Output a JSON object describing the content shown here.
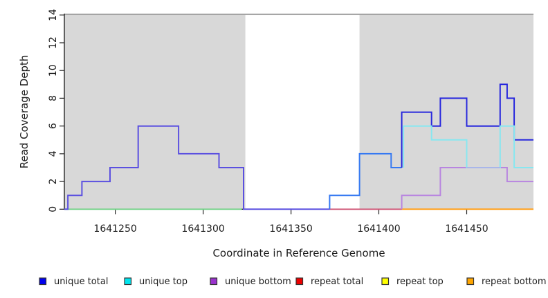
{
  "chart_data": {
    "type": "line",
    "subtype": "step-coverage-plot",
    "title": "",
    "xlabel": "Coordinate in Reference Genome",
    "ylabel": "Read Coverage Depth",
    "xlim": [
      1641221,
      1641488
    ],
    "ylim": [
      0,
      14
    ],
    "x_ticks": [
      1641250,
      1641300,
      1641350,
      1641400,
      1641450
    ],
    "y_ticks": [
      0,
      2,
      4,
      6,
      8,
      10,
      12,
      14
    ],
    "grid": false,
    "legend_position": "bottom",
    "top_rule_color": "#999999",
    "shaded_regions": [
      {
        "name": "repeat-region-left",
        "from": 1641221,
        "to": 1641324,
        "color": "#d8d8d8"
      },
      {
        "name": "repeat-region-right",
        "from": 1641389,
        "to": 1641488,
        "color": "#d8d8d8"
      }
    ],
    "series": [
      {
        "name": "unique total",
        "color": "#0101ee",
        "steps": [
          [
            1641221,
            0
          ],
          [
            1641223,
            1
          ],
          [
            1641231,
            2
          ],
          [
            1641247,
            3
          ],
          [
            1641263,
            6
          ],
          [
            1641286,
            4
          ],
          [
            1641309,
            3
          ],
          [
            1641323,
            0
          ],
          [
            1641372,
            1
          ],
          [
            1641389,
            4
          ],
          [
            1641407,
            3
          ],
          [
            1641413,
            7
          ],
          [
            1641430,
            6
          ],
          [
            1641435,
            8
          ],
          [
            1641450,
            6
          ],
          [
            1641469,
            9
          ],
          [
            1641473,
            8
          ],
          [
            1641477,
            5
          ]
        ]
      },
      {
        "name": "unique top",
        "color": "#00e5ee",
        "steps": [
          [
            1641221,
            0
          ],
          [
            1641372,
            1
          ],
          [
            1641389,
            4
          ],
          [
            1641407,
            3
          ],
          [
            1641414,
            6
          ],
          [
            1641430,
            5
          ],
          [
            1641450,
            3
          ],
          [
            1641469,
            6
          ],
          [
            1641477,
            3
          ]
        ]
      },
      {
        "name": "unique bottom",
        "color": "#9a32cd",
        "steps": [
          [
            1641221,
            0
          ],
          [
            1641223,
            1
          ],
          [
            1641231,
            2
          ],
          [
            1641247,
            3
          ],
          [
            1641263,
            6
          ],
          [
            1641286,
            4
          ],
          [
            1641309,
            3
          ],
          [
            1641323,
            0
          ],
          [
            1641413,
            1
          ],
          [
            1641435,
            3
          ],
          [
            1641473,
            2
          ]
        ]
      },
      {
        "name": "repeat total",
        "color": "#ee0000",
        "steps": [
          [
            1641221,
            0
          ]
        ]
      },
      {
        "name": "repeat top",
        "color": "#ffff00",
        "steps": [
          [
            1641221,
            0
          ]
        ]
      },
      {
        "name": "repeat bottom",
        "color": "#ffa500",
        "steps": [
          [
            1641221,
            0
          ]
        ]
      }
    ],
    "rendered_lines": [
      {
        "name": "baseline-green",
        "color": "#74d189",
        "width": 1.8,
        "points": [
          [
            1641221,
            0
          ],
          [
            1641322,
            0
          ]
        ]
      },
      {
        "name": "baseline-pink",
        "color": "#d05878",
        "width": 1.8,
        "points": [
          [
            1641372,
            0
          ],
          [
            1641413,
            0
          ]
        ]
      },
      {
        "name": "baseline-orange",
        "color": "#ff9f1a",
        "width": 2,
        "points": [
          [
            1641413,
            0
          ],
          [
            1641488,
            0
          ]
        ]
      },
      {
        "name": "unique-total-bottom-overlap",
        "color": "#5b50e0",
        "width": 2,
        "points": [
          [
            1641221,
            0
          ],
          [
            1641223,
            0
          ],
          [
            1641223,
            1
          ],
          [
            1641231,
            1
          ],
          [
            1641231,
            2
          ],
          [
            1641247,
            2
          ],
          [
            1641247,
            3
          ],
          [
            1641263,
            3
          ],
          [
            1641263,
            6
          ],
          [
            1641286,
            6
          ],
          [
            1641286,
            4
          ],
          [
            1641309,
            4
          ],
          [
            1641309,
            3
          ],
          [
            1641323,
            3
          ],
          [
            1641323,
            0
          ],
          [
            1641372,
            0
          ]
        ]
      },
      {
        "name": "unique-total-top-overlap",
        "color": "#3579f2",
        "width": 2,
        "points": [
          [
            1641372,
            0
          ],
          [
            1641372,
            1
          ],
          [
            1641389,
            1
          ],
          [
            1641389,
            4
          ],
          [
            1641407,
            4
          ],
          [
            1641407,
            3
          ],
          [
            1641413,
            3
          ]
        ]
      },
      {
        "name": "unique-total",
        "color": "#2727dd",
        "width": 2,
        "points": [
          [
            1641413,
            3
          ],
          [
            1641413,
            7
          ],
          [
            1641430,
            7
          ],
          [
            1641430,
            6
          ],
          [
            1641435,
            6
          ],
          [
            1641435,
            8
          ],
          [
            1641450,
            8
          ],
          [
            1641450,
            6
          ],
          [
            1641469,
            6
          ],
          [
            1641469,
            9
          ],
          [
            1641473,
            9
          ],
          [
            1641473,
            8
          ],
          [
            1641477,
            8
          ],
          [
            1641477,
            5
          ],
          [
            1641488,
            5
          ]
        ]
      },
      {
        "name": "unique-bottom",
        "color": "#b885e0",
        "width": 2,
        "points": [
          [
            1641413,
            0
          ],
          [
            1641413,
            1
          ],
          [
            1641435,
            1
          ],
          [
            1641435,
            3
          ],
          [
            1641473,
            3
          ],
          [
            1641473,
            2
          ],
          [
            1641488,
            2
          ]
        ]
      },
      {
        "name": "unique-top",
        "color": "#87e7f0",
        "width": 2,
        "points": [
          [
            1641414,
            3
          ],
          [
            1641414,
            6
          ],
          [
            1641430,
            6
          ],
          [
            1641430,
            5
          ],
          [
            1641450,
            5
          ],
          [
            1641450,
            3
          ],
          [
            1641469,
            3
          ],
          [
            1641469,
            6
          ],
          [
            1641477,
            6
          ],
          [
            1641477,
            3
          ],
          [
            1641488,
            3
          ]
        ]
      },
      {
        "name": "unique-top-bottom-overlap",
        "color": "#a9b6ea",
        "width": 2,
        "points": [
          [
            1641450,
            3
          ],
          [
            1641469,
            3
          ]
        ]
      }
    ],
    "legend": [
      {
        "label": "unique total",
        "fill": "#0101ee",
        "border": "#333333"
      },
      {
        "label": "unique top",
        "fill": "#00e5ee",
        "border": "#333333"
      },
      {
        "label": "unique bottom",
        "fill": "#9a32cd",
        "border": "#333333"
      },
      {
        "label": "repeat total",
        "fill": "#ee0000",
        "border": "#333333"
      },
      {
        "label": "repeat top",
        "fill": "#ffff00",
        "border": "#333333"
      },
      {
        "label": "repeat bottom",
        "fill": "#ffa500",
        "border": "#333333"
      }
    ]
  }
}
